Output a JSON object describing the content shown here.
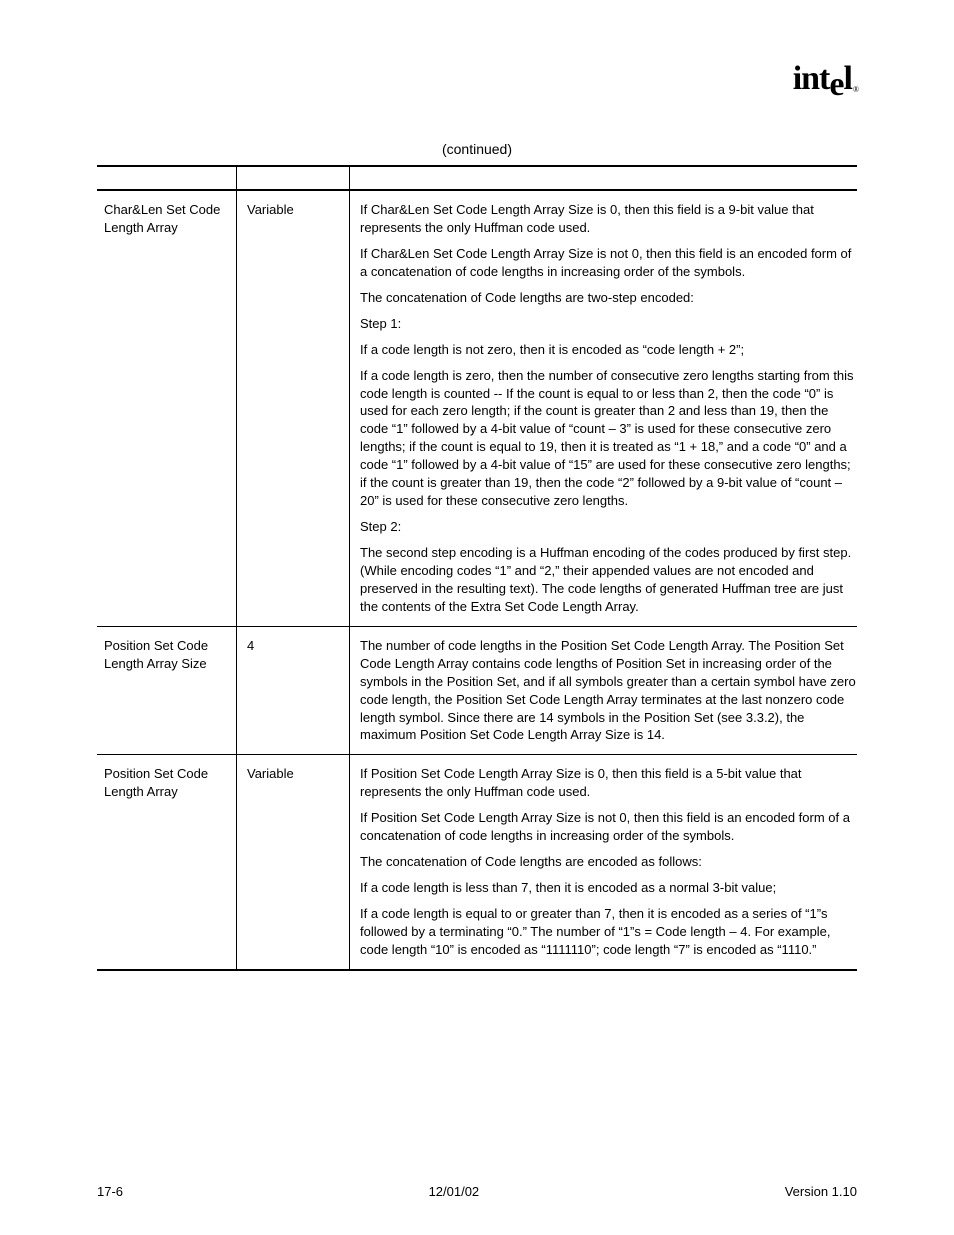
{
  "logo": {
    "text": "intel",
    "registered": "®"
  },
  "caption": "(continued)",
  "rows": [
    {
      "field": "Char&Len Set Code Length Array",
      "size": "Variable",
      "desc": [
        "If Char&Len Set Code Length Array Size is 0, then this field is a 9-bit value that represents the only Huffman code used.",
        "If Char&Len Set Code Length Array Size is not 0, then this field is an encoded form of a concatenation of code lengths in increasing order of the symbols.",
        "The concatenation of Code lengths are two-step encoded:",
        "Step 1:",
        "If a code length is not zero, then it is encoded as “code length + 2”;",
        "If a code length is zero, then the number of consecutive zero lengths starting from this code length is counted -- If the count is equal to or less than 2, then the code “0” is used for each zero length; if the count is greater than 2 and less than 19, then the code “1” followed by a 4-bit value of “count – 3” is used for these consecutive zero lengths; if the count is equal to 19, then it is treated as “1 + 18,” and a code “0” and a code “1” followed by a 4-bit value of “15” are used for these consecutive zero lengths; if the count is greater than 19, then the code “2” followed by a 9-bit value of “count – 20” is used for these consecutive zero lengths.",
        "Step 2:",
        "The second step encoding is a Huffman encoding of the codes produced by first step.  (While encoding codes “1” and “2,” their appended values are not encoded and preserved in the resulting text).  The code lengths of generated Huffman tree are just the contents of the Extra Set Code Length Array."
      ]
    },
    {
      "field": "Position Set Code Length Array Size",
      "size": "4",
      "desc": [
        "The number of code lengths in the Position Set Code Length Array.  The Position Set Code Length Array contains code lengths of Position Set in increasing order of the symbols in the Position Set, and if all symbols greater than a certain symbol have zero code length, the Position Set Code Length Array terminates at the last nonzero code length symbol.  Since there are 14 symbols in the Position Set (see 3.3.2), the maximum Position Set Code Length Array Size is 14."
      ]
    },
    {
      "field": "Position Set Code Length Array",
      "size": "Variable",
      "desc": [
        "If Position Set Code Length Array Size is 0, then this field is a 5-bit value that represents the only Huffman code used.",
        "If Position Set Code Length Array Size is not 0, then this field is an encoded form of a concatenation of code lengths in increasing order of the symbols.",
        "The concatenation of Code lengths are encoded as follows:",
        "If a code length is less than 7, then it is encoded as a normal 3-bit value;",
        "If a code length is equal to or greater than 7, then it is encoded as a series of “1”s followed by a terminating “0.”  The number of “1”s = Code length – 4.  For example, code length “10” is encoded as “1111110”; code length “7” is encoded as “1110.”"
      ]
    }
  ],
  "footer": {
    "left": "17-6",
    "center": "12/01/02",
    "right": "Version 1.10"
  }
}
